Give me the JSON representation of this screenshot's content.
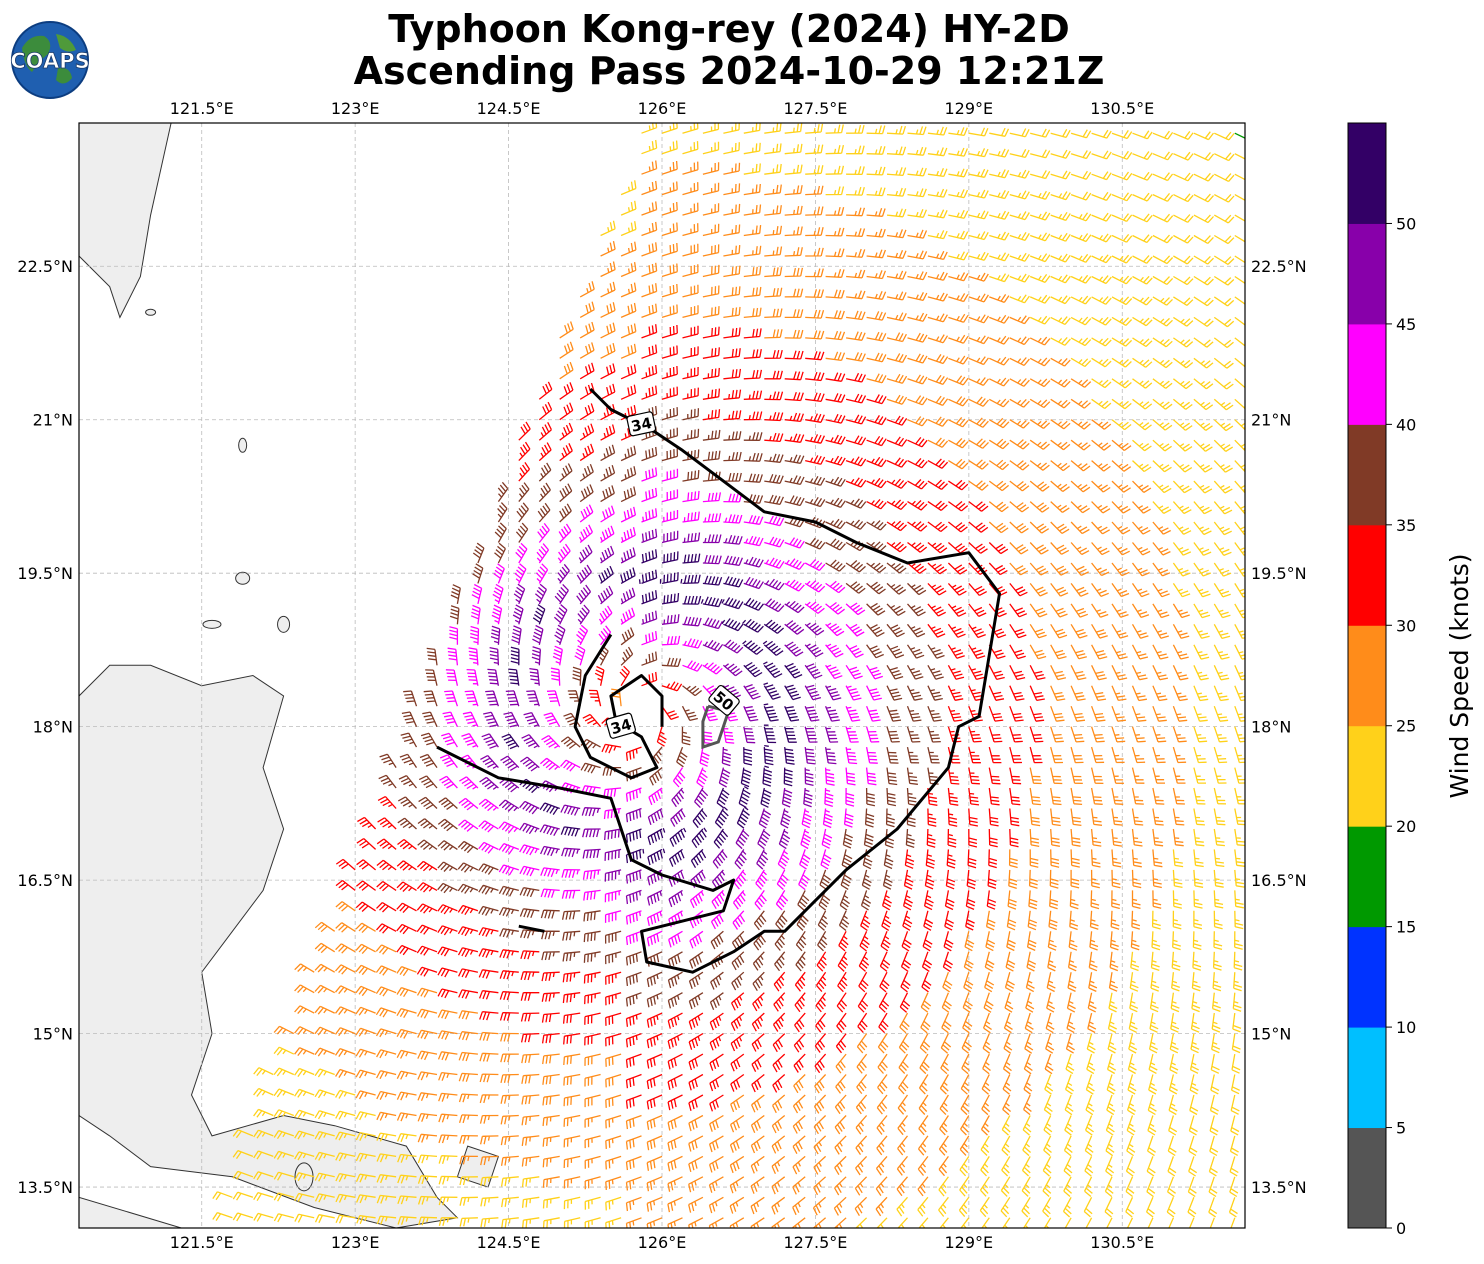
{
  "title_line1": "Typhoon Kong-rey (2024) HY-2D",
  "title_line2": "Ascending Pass 2024-10-29 12:21Z",
  "logo_text": "COAPS",
  "map": {
    "lon_min": 120.3,
    "lon_max": 131.7,
    "lat_min": 13.1,
    "lat_max": 23.9,
    "lon_ticks": [
      121.5,
      123,
      124.5,
      126,
      127.5,
      129,
      130.5
    ],
    "lon_tick_labels": [
      "121.5°E",
      "123°E",
      "124.5°E",
      "126°E",
      "127.5°E",
      "129°E",
      "130.5°E"
    ],
    "lat_ticks": [
      22.5,
      21,
      19.5,
      18,
      16.5,
      15,
      13.5
    ],
    "lat_tick_labels": [
      "22.5°N",
      "21°N",
      "19.5°N",
      "18°N",
      "16.5°N",
      "15°N",
      "13.5°N"
    ],
    "gridlines": true,
    "storm_center": [
      125.8,
      18.15
    ],
    "contour_labels": [
      "34",
      "34",
      "50"
    ],
    "land_color": "#eeeeee"
  },
  "colorbar": {
    "label": "Wind Speed (knots)",
    "ticks": [
      "0",
      "5",
      "10",
      "15",
      "20",
      "25",
      "30",
      "35",
      "40",
      "45",
      "50"
    ],
    "bins": [
      0,
      5,
      10,
      15,
      20,
      25,
      30,
      35,
      40,
      45,
      50,
      55
    ],
    "colors": [
      "#555555",
      "#00bfff",
      "#0033ff",
      "#009900",
      "#ffd11a",
      "#ff8c1a",
      "#ff0000",
      "#803a26",
      "#ff00ff",
      "#8800aa",
      "#330066"
    ]
  }
}
